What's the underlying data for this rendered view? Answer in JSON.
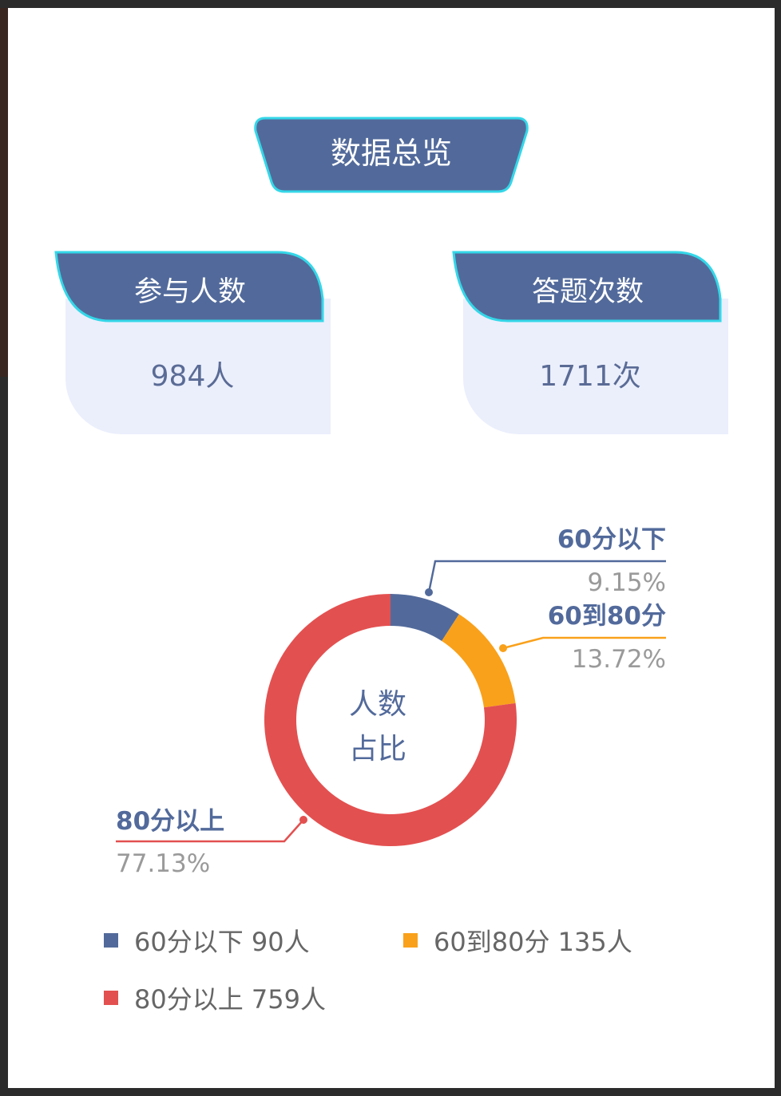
{
  "header": {
    "title": "数据总览"
  },
  "cards": [
    {
      "label": "参与人数",
      "value": "984人"
    },
    {
      "label": "答题次数",
      "value": "1711次"
    }
  ],
  "colors": {
    "primary": "#526a9b",
    "accent_border": "#34d7e8",
    "card_bg": "#ebeffc"
  },
  "chart_data": {
    "type": "pie",
    "variant": "donut",
    "center_label": [
      "人数",
      "占比"
    ],
    "categories": [
      "60分以下",
      "60到80分",
      "80分以上"
    ],
    "values": [
      90,
      135,
      759
    ],
    "percent_labels": [
      "9.15%",
      "13.72%",
      "77.13%"
    ],
    "colors": [
      "#526a9b",
      "#f9a11b",
      "#e35050"
    ],
    "legend": [
      {
        "label": "60分以下 90人"
      },
      {
        "label": "60到80分 135人"
      },
      {
        "label": "80分以上 759人"
      }
    ],
    "legend_position": "bottom"
  }
}
